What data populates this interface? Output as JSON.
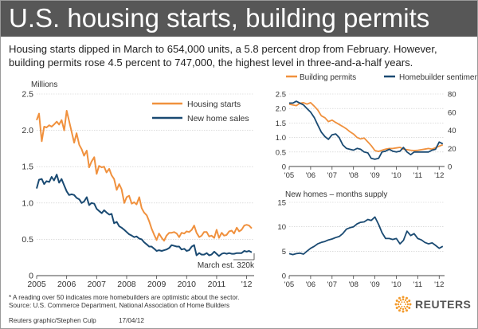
{
  "header": {
    "title": "U.S. housing starts, building permits",
    "subtitle": "Housing starts dipped in March to 654,000 units, a 5.8 percent drop from February. However, building permits rose 4.5 percent to 747,000, the highest level in three-and-a-half years."
  },
  "footer": {
    "footnote_1": "* A reading over 50 indicates more homebuilders are optimistic about the sector.",
    "footnote_2": "Source: U.S. Commerce Department, National Association of Home Builders",
    "credit": "Reuters graphic/Stephen Culp",
    "date": "17/04/12",
    "brand": "REUTERS"
  },
  "colors": {
    "orange": "#f0913e",
    "blue": "#1a4a72",
    "axis": "#444444",
    "header": "#575757"
  },
  "chart_data": [
    {
      "type": "line",
      "ylabel": "Millions",
      "xlim": [
        2005,
        2012.25
      ],
      "ylim": [
        0,
        2.5
      ],
      "yticks": [
        0,
        0.5,
        1.0,
        1.5,
        2.0,
        2.5
      ],
      "ytick_labels": [
        "0",
        "0.5",
        "1.0",
        "1.5",
        "2.0",
        "2.5"
      ],
      "xtick_labels": [
        "2005",
        "2006",
        "2007",
        "2008",
        "2009",
        "2010",
        "2011",
        "'12"
      ],
      "legend": "top-right",
      "annotation": "March est. 320k",
      "series": [
        {
          "name": "Housing starts",
          "color": "orange",
          "x": [
            2005.0,
            2005.08,
            2005.17,
            2005.25,
            2005.33,
            2005.42,
            2005.5,
            2005.58,
            2005.67,
            2005.75,
            2005.83,
            2005.92,
            2006.0,
            2006.08,
            2006.17,
            2006.25,
            2006.33,
            2006.42,
            2006.5,
            2006.58,
            2006.67,
            2006.75,
            2006.83,
            2006.92,
            2007.0,
            2007.08,
            2007.17,
            2007.25,
            2007.33,
            2007.42,
            2007.5,
            2007.58,
            2007.67,
            2007.75,
            2007.83,
            2007.92,
            2008.0,
            2008.08,
            2008.17,
            2008.25,
            2008.33,
            2008.42,
            2008.5,
            2008.58,
            2008.67,
            2008.75,
            2008.83,
            2008.92,
            2009.0,
            2009.08,
            2009.17,
            2009.25,
            2009.33,
            2009.42,
            2009.5,
            2009.58,
            2009.67,
            2009.75,
            2009.83,
            2009.92,
            2010.0,
            2010.08,
            2010.17,
            2010.25,
            2010.33,
            2010.42,
            2010.5,
            2010.58,
            2010.67,
            2010.75,
            2010.83,
            2010.92,
            2011.0,
            2011.08,
            2011.17,
            2011.25,
            2011.33,
            2011.42,
            2011.5,
            2011.58,
            2011.67,
            2011.75,
            2011.83,
            2011.92,
            2012.0,
            2012.08,
            2012.17
          ],
          "values": [
            2.14,
            2.23,
            1.85,
            2.05,
            2.04,
            2.07,
            2.05,
            2.08,
            2.12,
            2.08,
            2.14,
            2.0,
            2.27,
            2.13,
            1.97,
            1.83,
            1.96,
            1.8,
            1.74,
            1.65,
            1.72,
            1.49,
            1.57,
            1.63,
            1.4,
            1.51,
            1.49,
            1.5,
            1.42,
            1.47,
            1.38,
            1.33,
            1.18,
            1.26,
            1.19,
            1.0,
            1.08,
            1.1,
            0.99,
            1.01,
            0.98,
            1.08,
            0.93,
            0.87,
            0.83,
            0.75,
            0.65,
            0.56,
            0.49,
            0.58,
            0.52,
            0.48,
            0.55,
            0.59,
            0.59,
            0.6,
            0.58,
            0.53,
            0.59,
            0.58,
            0.61,
            0.6,
            0.63,
            0.69,
            0.59,
            0.53,
            0.55,
            0.6,
            0.6,
            0.54,
            0.55,
            0.52,
            0.63,
            0.52,
            0.59,
            0.55,
            0.56,
            0.61,
            0.62,
            0.58,
            0.66,
            0.61,
            0.63,
            0.69,
            0.7,
            0.69,
            0.65
          ]
        },
        {
          "name": "New home sales",
          "color": "blue",
          "x": [
            2005.0,
            2005.08,
            2005.17,
            2005.25,
            2005.33,
            2005.42,
            2005.5,
            2005.58,
            2005.67,
            2005.75,
            2005.83,
            2005.92,
            2006.0,
            2006.08,
            2006.17,
            2006.25,
            2006.33,
            2006.42,
            2006.5,
            2006.58,
            2006.67,
            2006.75,
            2006.83,
            2006.92,
            2007.0,
            2007.08,
            2007.17,
            2007.25,
            2007.33,
            2007.42,
            2007.5,
            2007.58,
            2007.67,
            2007.75,
            2007.83,
            2007.92,
            2008.0,
            2008.08,
            2008.17,
            2008.25,
            2008.33,
            2008.42,
            2008.5,
            2008.58,
            2008.67,
            2008.75,
            2008.83,
            2008.92,
            2009.0,
            2009.08,
            2009.17,
            2009.25,
            2009.33,
            2009.42,
            2009.5,
            2009.58,
            2009.67,
            2009.75,
            2009.83,
            2009.92,
            2010.0,
            2010.08,
            2010.17,
            2010.25,
            2010.33,
            2010.42,
            2010.5,
            2010.58,
            2010.67,
            2010.75,
            2010.83,
            2010.92,
            2011.0,
            2011.08,
            2011.17,
            2011.25,
            2011.33,
            2011.42,
            2011.5,
            2011.58,
            2011.67,
            2011.75,
            2011.83,
            2011.92,
            2012.0,
            2012.08,
            2012.17
          ],
          "values": [
            1.2,
            1.32,
            1.33,
            1.26,
            1.3,
            1.29,
            1.36,
            1.31,
            1.39,
            1.28,
            1.33,
            1.24,
            1.16,
            1.11,
            1.12,
            1.11,
            1.07,
            1.05,
            1.0,
            1.02,
            1.08,
            0.97,
            1.0,
            0.99,
            0.92,
            0.89,
            0.86,
            0.9,
            0.87,
            0.84,
            0.85,
            0.72,
            0.74,
            0.68,
            0.66,
            0.63,
            0.6,
            0.57,
            0.55,
            0.53,
            0.54,
            0.51,
            0.5,
            0.46,
            0.43,
            0.4,
            0.4,
            0.37,
            0.34,
            0.35,
            0.34,
            0.35,
            0.36,
            0.38,
            0.42,
            0.41,
            0.4,
            0.4,
            0.36,
            0.37,
            0.34,
            0.35,
            0.4,
            0.42,
            0.28,
            0.31,
            0.29,
            0.29,
            0.31,
            0.28,
            0.29,
            0.33,
            0.3,
            0.27,
            0.3,
            0.31,
            0.3,
            0.31,
            0.3,
            0.3,
            0.31,
            0.31,
            0.31,
            0.34,
            0.33,
            0.34,
            0.32
          ]
        }
      ]
    },
    {
      "type": "line",
      "xlim": [
        2005,
        2012.25
      ],
      "ylim": [
        0,
        2.5
      ],
      "yticks": [
        0,
        0.5,
        1.0,
        1.5,
        2.0,
        2.5
      ],
      "ytick_labels": [
        "0",
        "0.5",
        "1.0",
        "1.5",
        "2.0",
        "2.5"
      ],
      "y2lim": [
        0,
        80
      ],
      "y2ticks": [
        0,
        20,
        40,
        60,
        80
      ],
      "y2tick_labels": [
        "0",
        "20",
        "40",
        "60",
        "80"
      ],
      "xtick_labels": [
        "'05",
        "'06",
        "'07",
        "'08",
        "'09",
        "'10",
        "'11",
        "'12"
      ],
      "legend": "top",
      "series": [
        {
          "name": "Building permits",
          "color": "orange",
          "axis": "left",
          "x": [
            2005.0,
            2005.17,
            2005.33,
            2005.5,
            2005.67,
            2005.83,
            2006.0,
            2006.17,
            2006.33,
            2006.5,
            2006.67,
            2006.83,
            2007.0,
            2007.17,
            2007.33,
            2007.5,
            2007.67,
            2007.83,
            2008.0,
            2008.17,
            2008.33,
            2008.5,
            2008.67,
            2008.83,
            2009.0,
            2009.17,
            2009.33,
            2009.5,
            2009.67,
            2009.83,
            2010.0,
            2010.17,
            2010.33,
            2010.5,
            2010.67,
            2010.83,
            2011.0,
            2011.17,
            2011.33,
            2011.5,
            2011.67,
            2011.83,
            2012.0,
            2012.17
          ],
          "values": [
            2.15,
            2.12,
            2.1,
            2.18,
            2.2,
            2.15,
            2.2,
            2.08,
            1.95,
            1.75,
            1.68,
            1.55,
            1.6,
            1.52,
            1.45,
            1.38,
            1.3,
            1.2,
            1.12,
            1.0,
            0.95,
            0.98,
            0.85,
            0.72,
            0.55,
            0.52,
            0.56,
            0.6,
            0.62,
            0.62,
            0.64,
            0.66,
            0.6,
            0.58,
            0.56,
            0.55,
            0.56,
            0.58,
            0.6,
            0.62,
            0.6,
            0.65,
            0.7,
            0.75
          ]
        },
        {
          "name": "Homebuilder sentiment*",
          "color": "blue",
          "axis": "right",
          "x": [
            2005.0,
            2005.17,
            2005.33,
            2005.5,
            2005.67,
            2005.83,
            2006.0,
            2006.17,
            2006.33,
            2006.5,
            2006.67,
            2006.83,
            2007.0,
            2007.17,
            2007.33,
            2007.5,
            2007.67,
            2007.83,
            2008.0,
            2008.17,
            2008.33,
            2008.5,
            2008.67,
            2008.83,
            2009.0,
            2009.17,
            2009.33,
            2009.5,
            2009.67,
            2009.83,
            2010.0,
            2010.17,
            2010.33,
            2010.5,
            2010.67,
            2010.83,
            2011.0,
            2011.17,
            2011.33,
            2011.5,
            2011.67,
            2011.83,
            2012.0,
            2012.17
          ],
          "values": [
            70,
            70,
            72,
            70,
            68,
            64,
            60,
            54,
            46,
            38,
            33,
            30,
            35,
            36,
            32,
            24,
            20,
            19,
            18,
            20,
            19,
            16,
            15,
            9,
            8,
            9,
            16,
            17,
            19,
            17,
            16,
            17,
            21,
            16,
            13,
            16,
            16,
            16,
            16,
            16,
            18,
            19,
            27,
            25
          ]
        }
      ]
    },
    {
      "type": "line",
      "title": "New homes – months supply",
      "xlim": [
        2005,
        2012.25
      ],
      "ylim": [
        0,
        15
      ],
      "yticks": [
        0,
        5,
        10,
        15
      ],
      "ytick_labels": [
        "0",
        "5",
        "10",
        "15"
      ],
      "xtick_labels": [
        "'05",
        "'06",
        "'07",
        "'08",
        "'09",
        "'10",
        "'11",
        "'12"
      ],
      "series": [
        {
          "name": "",
          "color": "blue",
          "x": [
            2005.0,
            2005.17,
            2005.33,
            2005.5,
            2005.67,
            2005.83,
            2006.0,
            2006.17,
            2006.33,
            2006.5,
            2006.67,
            2006.83,
            2007.0,
            2007.17,
            2007.33,
            2007.5,
            2007.67,
            2007.83,
            2008.0,
            2008.17,
            2008.33,
            2008.5,
            2008.67,
            2008.83,
            2009.0,
            2009.17,
            2009.33,
            2009.5,
            2009.67,
            2009.83,
            2010.0,
            2010.17,
            2010.33,
            2010.5,
            2010.67,
            2010.83,
            2011.0,
            2011.17,
            2011.33,
            2011.5,
            2011.67,
            2011.83,
            2012.0,
            2012.17
          ],
          "values": [
            4.5,
            4.3,
            4.5,
            4.6,
            4.4,
            5.0,
            5.6,
            6.0,
            6.5,
            6.8,
            7.0,
            7.3,
            7.5,
            7.8,
            8.0,
            8.6,
            9.5,
            9.8,
            10.0,
            10.6,
            10.9,
            11.0,
            11.5,
            11.3,
            12.0,
            10.5,
            8.8,
            7.6,
            7.6,
            7.4,
            7.6,
            6.5,
            7.2,
            9.1,
            8.2,
            8.6,
            7.6,
            7.3,
            6.8,
            6.5,
            6.7,
            6.2,
            5.6,
            6.0
          ]
        }
      ]
    }
  ]
}
